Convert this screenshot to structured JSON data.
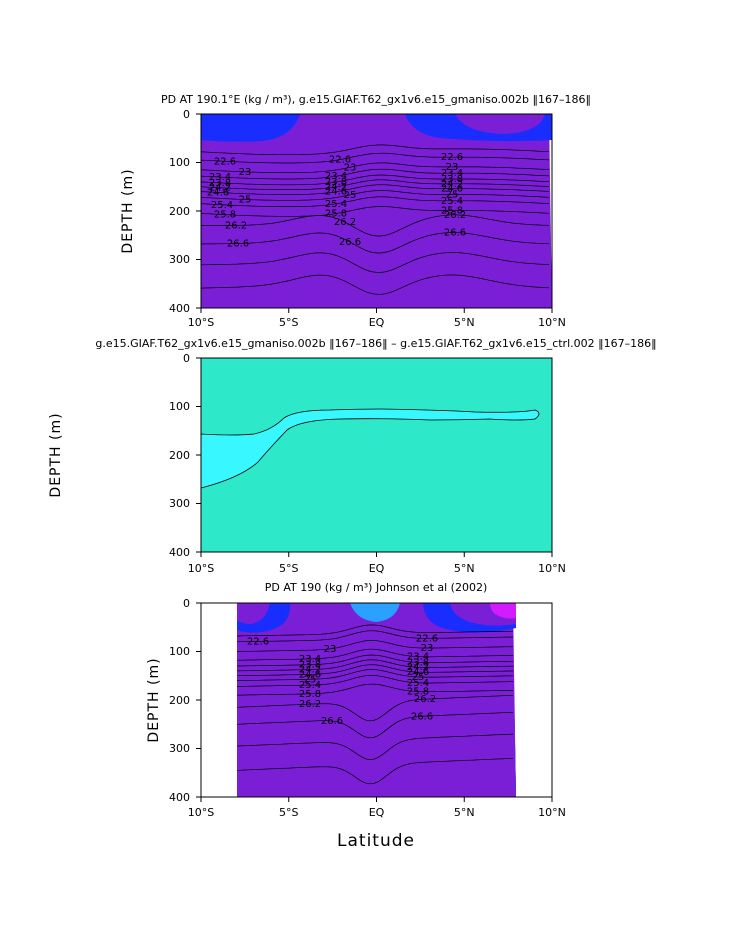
{
  "chart_data": [
    {
      "type": "contour",
      "title": "PD AT 190.1°E (kg / m³), g.e15.GIAF.T62_gx1v6.e15_gmaniso.002b ‖167–186‖",
      "xlabel": "",
      "ylabel": "DEPTH (m)",
      "xlim": [
        -10,
        10
      ],
      "ylim": [
        400,
        0
      ],
      "xticks": [
        "10°S",
        "5°S",
        "EQ",
        "5°N",
        "10°N"
      ],
      "yticks": [
        "0",
        "100",
        "200",
        "300",
        "400"
      ],
      "contour_labels": [
        "22.6",
        "23",
        "23.4",
        "23.8",
        "24.2",
        "24.6",
        "25",
        "25.4",
        "25.8",
        "26.2",
        "26.6"
      ],
      "colormap": [
        "#7a1fd6",
        "#1a2dff",
        "#1f6bff",
        "#2aa0ff",
        "#22cfe0",
        "#2de0a0",
        "#44e040",
        "#c8e020",
        "#ffd400",
        "#ff9a00",
        "#ff6400",
        "#ff3a00",
        "#ee1a00",
        "#d80000",
        "#c40000"
      ]
    },
    {
      "type": "contour",
      "title": "g.e15.GIAF.T62_gx1v6.e15_gmaniso.002b ‖167–186‖ – g.e15.GIAF.T62_gx1v6.e15_ctrl.002 ‖167–186‖",
      "xlabel": "",
      "ylabel": "DEPTH (m)",
      "xlim": [
        -10,
        10
      ],
      "ylim": [
        400,
        0
      ],
      "xticks": [
        "10°S",
        "5°S",
        "EQ",
        "5°N",
        "10°N"
      ],
      "yticks": [
        "0",
        "100",
        "200",
        "300",
        "400"
      ],
      "colors": {
        "background": "#2de8c9",
        "anomaly": "#38f7ff"
      }
    },
    {
      "type": "contour",
      "title": "PD AT 190 (kg / m³) Johnson et al (2002)",
      "xlabel": "Latitude",
      "ylabel": "DEPTH (m)",
      "xlim": [
        -10,
        10
      ],
      "ylim": [
        400,
        0
      ],
      "data_xlim": [
        -8,
        8
      ],
      "xticks": [
        "10°S",
        "5°S",
        "EQ",
        "5°N",
        "10°N"
      ],
      "yticks": [
        "0",
        "100",
        "200",
        "300",
        "400"
      ],
      "contour_labels": [
        "22.6",
        "23",
        "23.4",
        "23.8",
        "24.2",
        "24.6",
        "25",
        "25.4",
        "25.8",
        "26.2",
        "26.6"
      ]
    }
  ]
}
